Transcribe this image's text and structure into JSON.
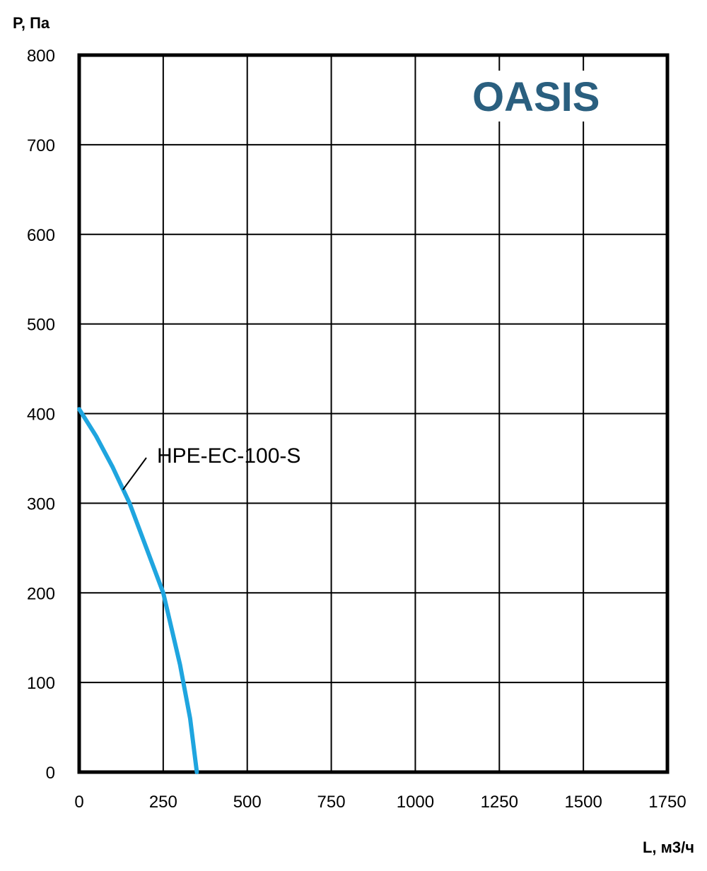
{
  "chart_data": {
    "type": "line",
    "xlabel": "L, м3/ч",
    "ylabel": "P, Па",
    "xlim": [
      0,
      1750
    ],
    "ylim": [
      0,
      800
    ],
    "x_ticks": [
      "0",
      "250",
      "500",
      "750",
      "1000",
      "1250",
      "1500",
      "1750"
    ],
    "y_ticks": [
      "0",
      "100",
      "200",
      "300",
      "400",
      "500",
      "600",
      "700",
      "800"
    ],
    "grid": true,
    "series": [
      {
        "name": "HPE-EC-100-S",
        "color": "#1fa5df",
        "x": [
          0,
          50,
          100,
          150,
          200,
          250,
          300,
          330,
          350
        ],
        "y": [
          405,
          375,
          340,
          300,
          250,
          200,
          120,
          60,
          0
        ]
      }
    ],
    "annotations": [
      {
        "text": "HPE-EC-100-S",
        "series": "HPE-EC-100-S",
        "point": [
          130,
          315
        ]
      }
    ]
  },
  "brand": {
    "text": "OASIS",
    "color": "#2a5f7f"
  }
}
